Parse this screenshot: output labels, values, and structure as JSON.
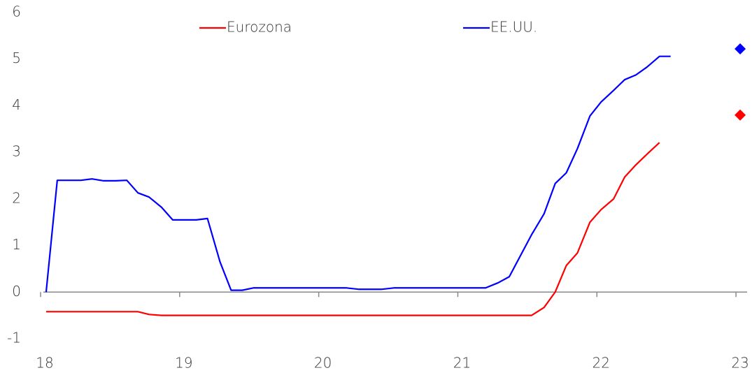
{
  "chart_data": {
    "type": "line",
    "xlim": [
      18,
      23.08
    ],
    "xticks": [
      18,
      19,
      20,
      21,
      22,
      23
    ],
    "ylim": [
      -1,
      6
    ],
    "yticks": [
      -1,
      0,
      1,
      2,
      3,
      4,
      5,
      6
    ],
    "series": [
      {
        "name": "Eurozona",
        "color": "#ff0000",
        "x": [
          18.04,
          18.7,
          18.78,
          18.87,
          21.53,
          21.62,
          21.7,
          21.78,
          21.86,
          21.95,
          22.03,
          22.12,
          22.2,
          22.28,
          22.36,
          22.45
        ],
        "values": [
          -0.42,
          -0.42,
          -0.48,
          -0.5,
          -0.5,
          -0.33,
          0,
          0.57,
          0.84,
          1.5,
          1.77,
          2.0,
          2.47,
          2.73,
          2.96,
          3.21
        ],
        "forecast": {
          "x": 23.03,
          "value": 3.8
        }
      },
      {
        "name": "EE.UU.",
        "color": "#0000ff",
        "x": [
          18.04,
          18.12,
          18.29,
          18.37,
          18.45,
          18.54,
          18.62,
          18.7,
          18.78,
          18.87,
          18.95,
          19.12,
          19.2,
          19.29,
          19.37,
          19.45,
          19.53,
          20.2,
          20.29,
          20.45,
          20.54,
          21.2,
          21.29,
          21.37,
          21.45,
          21.53,
          21.62,
          21.7,
          21.78,
          21.86,
          21.95,
          22.03,
          22.12,
          22.2,
          22.28,
          22.36,
          22.45,
          22.53
        ],
        "values": [
          0,
          2.4,
          2.4,
          2.43,
          2.39,
          2.39,
          2.4,
          2.13,
          2.04,
          1.82,
          1.55,
          1.55,
          1.58,
          0.65,
          0.04,
          0.04,
          0.09,
          0.09,
          0.06,
          0.06,
          0.09,
          0.09,
          0.2,
          0.33,
          0.78,
          1.23,
          1.68,
          2.33,
          2.56,
          3.08,
          3.78,
          4.08,
          4.33,
          4.56,
          4.66,
          4.83,
          5.06,
          5.06
        ],
        "forecast": {
          "x": 23.03,
          "value": 5.22
        }
      }
    ]
  }
}
